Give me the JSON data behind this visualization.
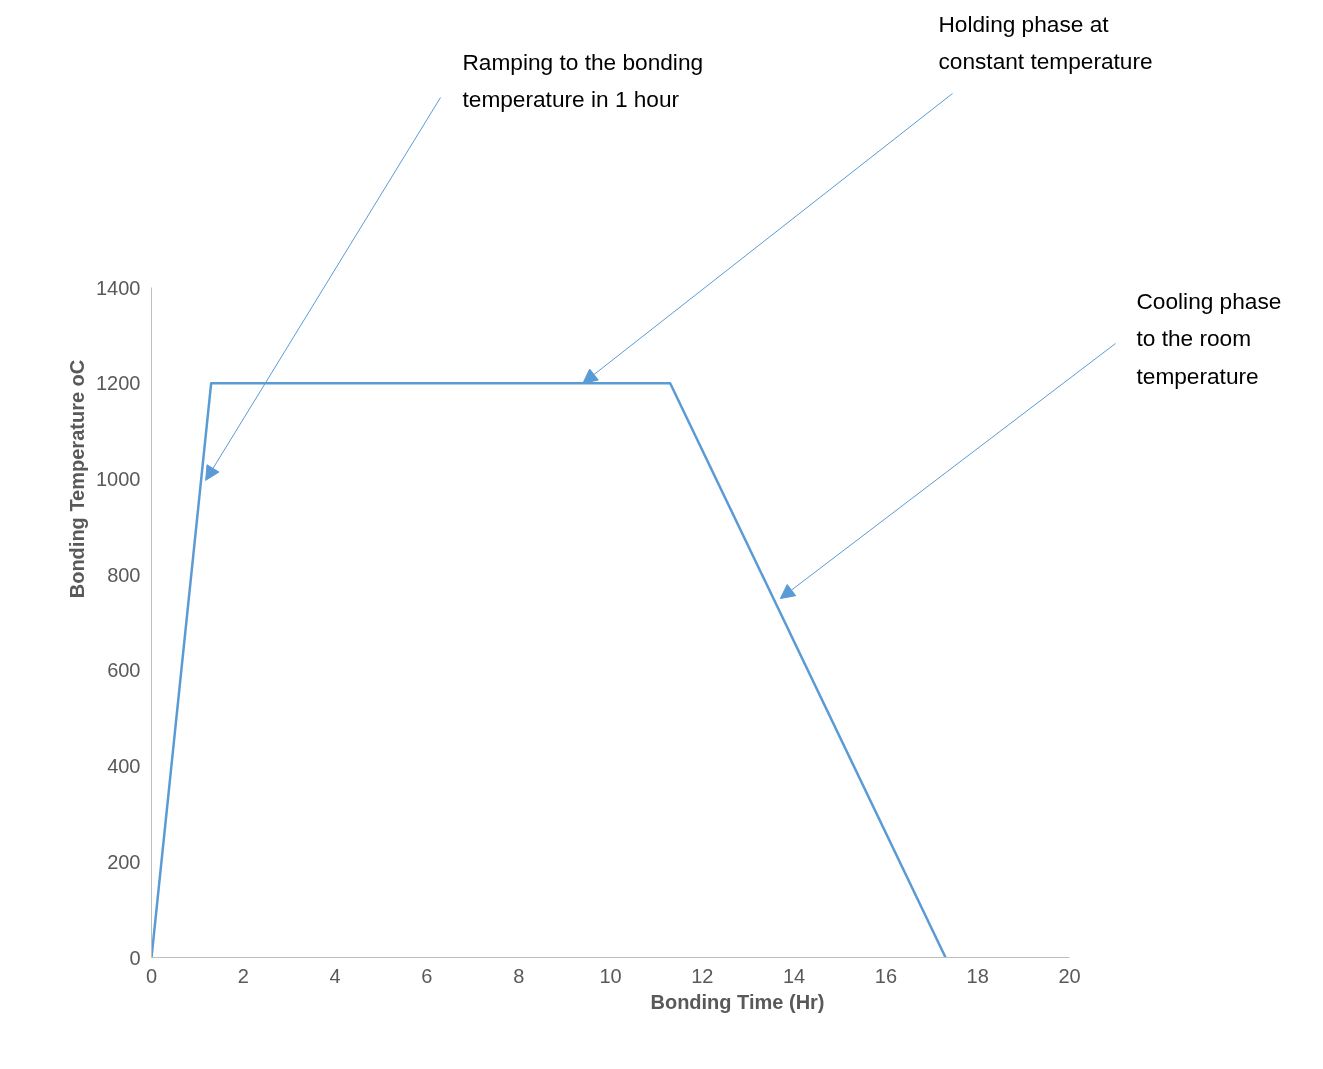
{
  "chart_data": {
    "type": "line",
    "xlabel": "Bonding Time (Hr)",
    "ylabel": "Bonding Temperature oC",
    "x": [
      0,
      1.3,
      11.3,
      17.3
    ],
    "series": [
      {
        "color": "#5b9bd5",
        "values": [
          0,
          1200,
          1200,
          0
        ]
      }
    ],
    "xlim": [
      0,
      20
    ],
    "xticks": [
      0,
      2,
      4,
      6,
      8,
      10,
      12,
      14,
      16,
      18,
      20
    ],
    "ylim": [
      0,
      1400
    ],
    "yticks": [
      0,
      200,
      400,
      600,
      800,
      1000,
      1200,
      1400
    ],
    "grid": false,
    "marker": "none",
    "line_style": "solid",
    "annotations": [
      {
        "text": "Ramping to the bonding\ntemperature in 1 hour",
        "x": 1.18,
        "y": 997
      },
      {
        "text": "Holding phase at\nconstant temperature",
        "x": 9.4,
        "y": 1200
      },
      {
        "text": "Cooling phase\nto the room\ntemperature",
        "x": 13.7,
        "y": 750
      }
    ]
  }
}
